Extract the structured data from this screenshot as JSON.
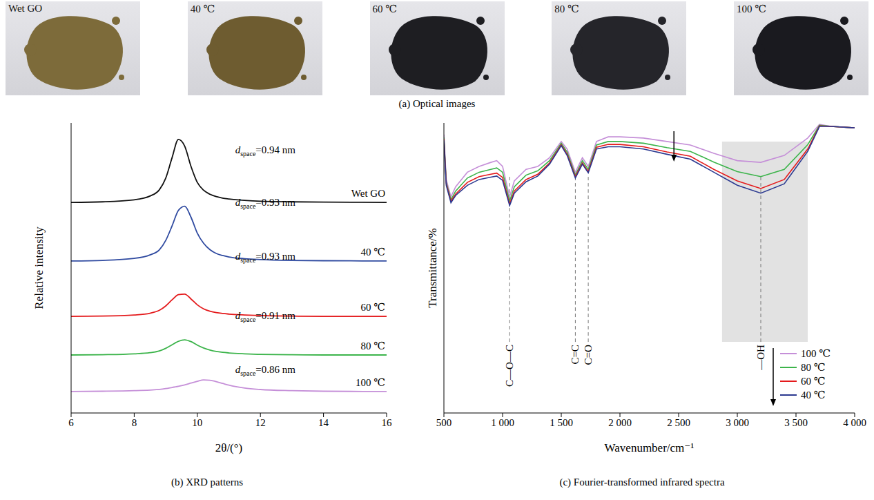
{
  "optical_images": {
    "caption": "(a) Optical images",
    "images": [
      {
        "label": "Wet GO",
        "color": "#7d6b3a"
      },
      {
        "label": "40 ℃",
        "color": "#6e5c30"
      },
      {
        "label": "60 ℃",
        "color": "#1e1e22"
      },
      {
        "label": "80 ℃",
        "color": "#25252a"
      },
      {
        "label": "100 ℃",
        "color": "#1a1a1f"
      }
    ]
  },
  "chart_data": [
    {
      "type": "line",
      "caption": "(b) XRD patterns",
      "x_label": "2θ/(°)",
      "y_label": "Relative intensity",
      "xlim": [
        6,
        16
      ],
      "xticks": [
        6,
        8,
        10,
        12,
        14,
        16
      ],
      "ylim": [
        0,
        100
      ],
      "tick_labels": "x",
      "x": [
        6,
        7,
        8,
        8.5,
        8.8,
        9,
        9.2,
        9.4,
        9.6,
        9.8,
        10,
        10.2,
        10.4,
        10.6,
        10.8,
        11,
        11.5,
        12,
        13,
        14,
        16
      ],
      "series": [
        {
          "name": "Wet GO",
          "color": "#111111",
          "values": [
            72.6,
            72.8,
            73.5,
            74.8,
            77,
            81,
            88,
            94.3,
            92,
            85,
            79.5,
            76.8,
            75.4,
            74.6,
            74.1,
            73.8,
            73.3,
            73,
            72.8,
            72.7,
            72.6
          ]
        },
        {
          "name": "40 ℃",
          "color": "#2f4aa0",
          "values": [
            52.4,
            52.6,
            53.3,
            54.5,
            56.3,
            59.5,
            64.5,
            69.8,
            71.3,
            67.5,
            62,
            58.5,
            56.3,
            55,
            54.3,
            53.8,
            53.2,
            52.9,
            52.6,
            52.5,
            52.4
          ]
        },
        {
          "name": "60 ℃",
          "color": "#e41a1c",
          "values": [
            33.3,
            33.4,
            33.8,
            34.4,
            35.4,
            36.9,
            39,
            40.8,
            41,
            39.3,
            37.3,
            35.9,
            35.1,
            34.6,
            34.3,
            34.1,
            33.8,
            33.6,
            33.4,
            33.3,
            33.3
          ]
        },
        {
          "name": "80 ℃",
          "color": "#3cb44b",
          "values": [
            20,
            20.1,
            20.4,
            20.8,
            21.4,
            22.3,
            23.5,
            24.7,
            25.2,
            24.6,
            23.4,
            22.4,
            21.7,
            21.2,
            20.9,
            20.7,
            20.4,
            20.2,
            20.1,
            20,
            20
          ]
        },
        {
          "name": "100 ℃",
          "color": "#c58fd8",
          "values": [
            7.4,
            7.5,
            7.7,
            7.9,
            8.1,
            8.4,
            8.8,
            9.2,
            9.7,
            10.3,
            10.9,
            11.4,
            11.3,
            10.8,
            10.2,
            9.6,
            8.6,
            8.1,
            7.7,
            7.5,
            7.4
          ]
        }
      ],
      "annotations": [
        {
          "x": 11.2,
          "y": 89.5,
          "symbol": "d",
          "subscript": "space",
          "text": "=0.94 nm"
        },
        {
          "x": 11.2,
          "y": 71.4,
          "symbol": "d",
          "subscript": "space",
          "text": "=0.93 nm"
        },
        {
          "x": 11.2,
          "y": 52.9,
          "symbol": "d",
          "subscript": "space",
          "text": "=0.93 nm"
        },
        {
          "x": 11.2,
          "y": 32.4,
          "symbol": "d",
          "subscript": "space",
          "text": "=0.91 nm"
        },
        {
          "x": 11.2,
          "y": 13.8,
          "symbol": "d",
          "subscript": "space",
          "text": "=0.86 nm"
        }
      ]
    },
    {
      "type": "line",
      "caption": "(c) Fourier-transformed infrared spectra",
      "x_label": "Wavenumber/cm⁻¹",
      "y_label": "Transmittance/%",
      "xlim": [
        500,
        4000
      ],
      "xticks": [
        500,
        {
          "value": 1000,
          "label": "1 000"
        },
        {
          "value": 1500,
          "label": "1 500"
        },
        {
          "value": 2000,
          "label": "2 000"
        },
        {
          "value": 2500,
          "label": "2 500"
        },
        {
          "value": 3000,
          "label": "3 000"
        },
        {
          "value": 3500,
          "label": "3 500"
        },
        {
          "value": 4000,
          "label": "4 000"
        }
      ],
      "ylim": [
        0,
        100
      ],
      "tick_labels": "x",
      "legend": "lower right",
      "x": [
        500,
        520,
        560,
        600,
        700,
        800,
        900,
        950,
        1000,
        1060,
        1100,
        1200,
        1300,
        1400,
        1500,
        1550,
        1620,
        1680,
        1730,
        1800,
        1900,
        2000,
        2200,
        2400,
        2600,
        2800,
        3000,
        3200,
        3400,
        3600,
        3700,
        3800,
        4000
      ],
      "series": [
        {
          "name": "100 ℃",
          "color": "#c58fd8",
          "values": [
            96,
            80.5,
            74.5,
            78,
            83,
            85,
            86.4,
            87,
            85,
            74.5,
            80,
            84,
            85,
            88,
            93.6,
            91,
            83,
            88,
            85,
            93.6,
            95.2,
            95.2,
            94.8,
            93.6,
            92.4,
            89.5,
            87,
            86.4,
            88.8,
            94.8,
            99.5,
            98.8,
            98.3
          ]
        },
        {
          "name": "80 ℃",
          "color": "#3cb44b",
          "values": [
            95,
            79.5,
            73.5,
            76.5,
            81,
            83,
            84,
            84.5,
            83,
            73,
            78,
            82,
            83.5,
            87,
            93,
            90,
            82,
            87,
            84,
            92.4,
            93.6,
            93.6,
            93,
            91.5,
            90.2,
            86.5,
            83.2,
            81.5,
            84,
            92.5,
            99.2,
            98.8,
            98.3
          ]
        },
        {
          "name": "60 ℃",
          "color": "#e41a1c",
          "values": [
            94.5,
            79,
            73,
            75.5,
            79.5,
            81.5,
            82.3,
            82.7,
            81.2,
            72,
            76.5,
            80.5,
            82.3,
            86.2,
            92.5,
            89.2,
            81.5,
            86.2,
            83.2,
            91.6,
            92.6,
            92.6,
            91.8,
            90,
            88.5,
            84,
            80,
            77.4,
            80.5,
            91,
            99,
            98.8,
            98.3
          ]
        },
        {
          "name": "40 ℃",
          "color": "#2b3990",
          "values": [
            94,
            78.5,
            72.5,
            75,
            78.5,
            80.5,
            81.3,
            81.7,
            80.2,
            71.5,
            75.8,
            79.7,
            81.7,
            85.8,
            92.2,
            88.8,
            81,
            85.8,
            82.8,
            91,
            91.8,
            91.8,
            91,
            89.2,
            87.5,
            83,
            78.5,
            75.8,
            79,
            90.2,
            98.8,
            98.8,
            98.3
          ]
        }
      ],
      "highlight": {
        "x": [
          2870,
          3600
        ],
        "y": [
          24.5,
          93.6
        ]
      },
      "peaks": {
        "y": [
          24.5,
          82
        ],
        "items": [
          {
            "label": "C—O—C",
            "x": 1060
          },
          {
            "label": "C=C",
            "x": 1620
          },
          {
            "label": "C=O",
            "x": 1730
          },
          {
            "label": "—OH",
            "x": 3200
          }
        ]
      }
    }
  ]
}
